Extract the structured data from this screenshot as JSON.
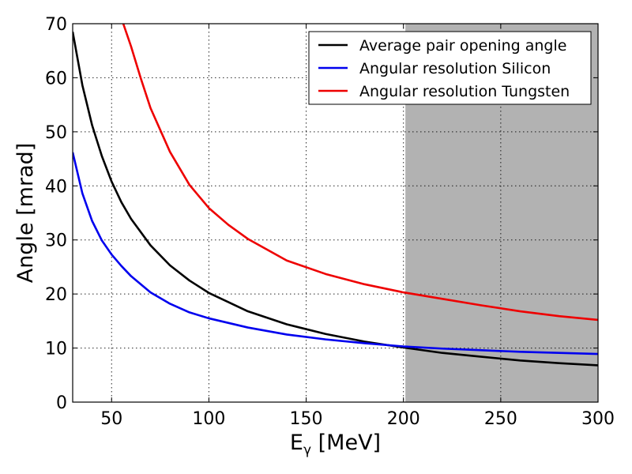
{
  "chart_data": {
    "type": "line",
    "xlabel": "E",
    "xlabel_sub": "γ",
    "xlabel_unit": " [MeV]",
    "ylabel": "Angle [mrad]",
    "xlim": [
      30,
      300
    ],
    "ylim": [
      0,
      70
    ],
    "xticks": [
      50,
      100,
      150,
      200,
      250,
      300
    ],
    "yticks": [
      0,
      10,
      20,
      30,
      40,
      50,
      60,
      70
    ],
    "grid": true,
    "legend_position": "top-right",
    "shaded_region": {
      "x": [
        201,
        300
      ],
      "color": "#b2b2b2"
    },
    "series": [
      {
        "name": "Average pair opening angle",
        "color": "#000000",
        "x": [
          30,
          35,
          40,
          45,
          50,
          55,
          60,
          70,
          80,
          90,
          100,
          120,
          140,
          160,
          180,
          200,
          220,
          240,
          260,
          280,
          300
        ],
        "y": [
          68.5,
          58.6,
          51.2,
          45.5,
          40.8,
          37.0,
          33.9,
          29.0,
          25.3,
          22.5,
          20.2,
          16.8,
          14.4,
          12.6,
          11.2,
          10.1,
          9.1,
          8.4,
          7.7,
          7.2,
          6.8
        ]
      },
      {
        "name": "Angular resolution Silicon",
        "color": "#0000ee",
        "x": [
          30,
          35,
          40,
          45,
          50,
          55,
          60,
          70,
          80,
          90,
          100,
          120,
          140,
          160,
          180,
          200,
          220,
          240,
          260,
          280,
          300
        ],
        "y": [
          46.2,
          38.6,
          33.5,
          29.9,
          27.3,
          25.2,
          23.3,
          20.3,
          18.2,
          16.6,
          15.5,
          13.8,
          12.5,
          11.6,
          10.9,
          10.3,
          9.9,
          9.6,
          9.3,
          9.1,
          8.9
        ]
      },
      {
        "name": "Angular resolution Tungsten",
        "color": "#ee0000",
        "x": [
          56,
          60,
          65,
          70,
          80,
          90,
          100,
          110,
          120,
          140,
          160,
          180,
          200,
          220,
          240,
          260,
          280,
          300
        ],
        "y": [
          70.0,
          65.8,
          59.9,
          54.4,
          46.3,
          40.2,
          35.9,
          32.8,
          30.2,
          26.2,
          23.7,
          21.8,
          20.3,
          19.1,
          17.9,
          16.8,
          15.9,
          15.2
        ]
      }
    ]
  }
}
